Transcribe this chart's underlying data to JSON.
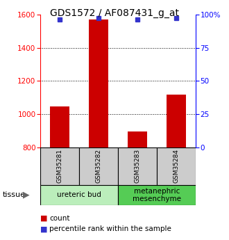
{
  "title": "GDS1572 / AF087431_g_at",
  "samples": [
    "GSM35281",
    "GSM35282",
    "GSM35283",
    "GSM35284"
  ],
  "counts": [
    1047,
    1571,
    897,
    1120
  ],
  "percentile_ranks": [
    96,
    97,
    96,
    97
  ],
  "ylim_left": [
    800,
    1600
  ],
  "ylim_right": [
    0,
    100
  ],
  "yticks_left": [
    800,
    1000,
    1200,
    1400,
    1600
  ],
  "yticks_right": [
    0,
    25,
    50,
    75,
    100
  ],
  "ytick_right_labels": [
    "0",
    "25",
    "50",
    "75",
    "100%"
  ],
  "bar_color": "#cc0000",
  "dot_color": "#3333cc",
  "bar_width": 0.5,
  "tissue_groups": [
    {
      "label": "ureteric bud",
      "samples": [
        0,
        1
      ],
      "color": "#bbeebb"
    },
    {
      "label": "metanephric\nmesenchyme",
      "samples": [
        2,
        3
      ],
      "color": "#55cc55"
    }
  ],
  "legend_count_label": "count",
  "legend_pct_label": "percentile rank within the sample",
  "tissue_label": "tissue",
  "background_color": "#ffffff",
  "plot_bg_color": "#ffffff",
  "sample_box_color": "#cccccc",
  "title_fontsize": 10,
  "tick_fontsize": 7.5,
  "legend_fontsize": 7.5,
  "sample_fontsize": 6.5,
  "tissue_fontsize": 7.5
}
